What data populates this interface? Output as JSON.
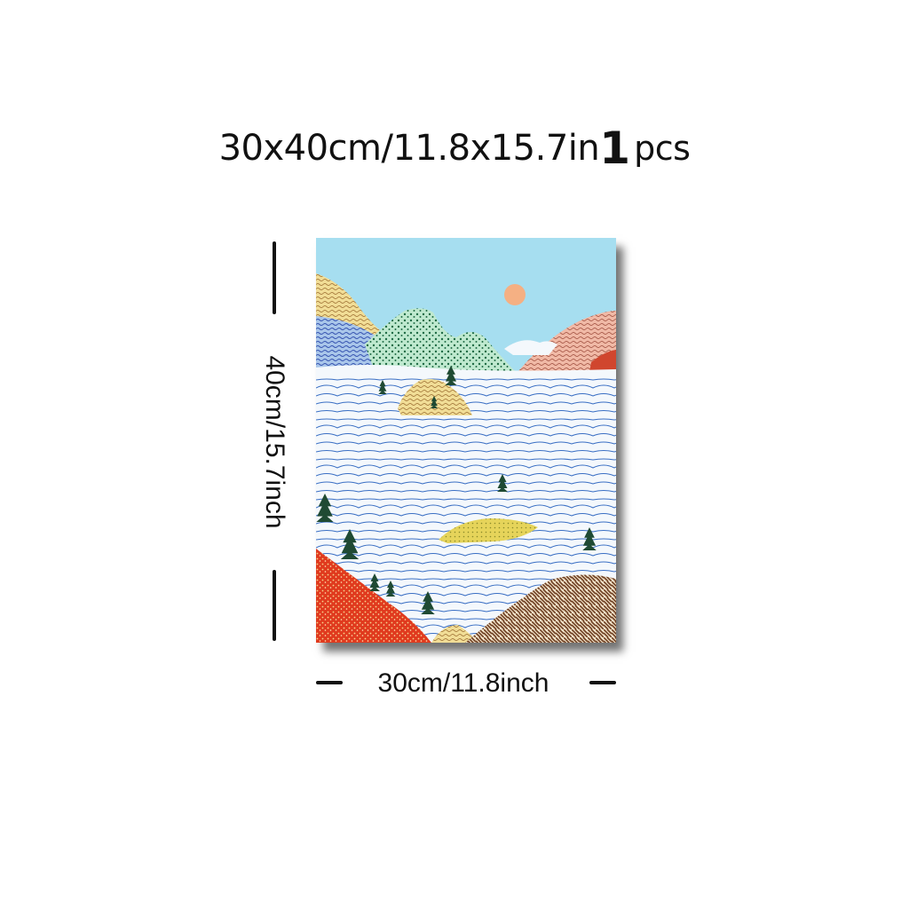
{
  "title": {
    "size_text": "30x40cm/11.8x15.7in",
    "quantity": "1",
    "unit": "pcs"
  },
  "height_label": "40cm/15.7inch",
  "width_label": "30cm/11.8inch",
  "colors": {
    "sky": "#a6def0",
    "sun": "#f5b083",
    "sea_of_clouds": "#f4f8fc",
    "cloud_lines": "#3a6fc4",
    "pine": "#1f4a33",
    "red_hill": "#e03a1e",
    "brown_hill": "#7b4f34",
    "island": "#e6d45a"
  }
}
